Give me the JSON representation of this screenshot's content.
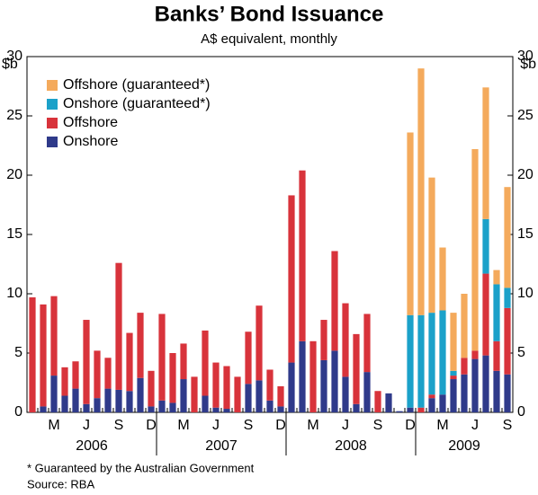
{
  "chart_data": {
    "type": "stacked_bar",
    "title": "Banks’ Bond Issuance",
    "subtitle": "A$ equivalent, monthly",
    "y_label": "$b",
    "footnote": "*    Guaranteed by the Australian Government",
    "source": "Source: RBA",
    "categories": [
      null,
      null,
      "M",
      null,
      null,
      "J",
      null,
      null,
      "S",
      null,
      null,
      "D",
      null,
      null,
      "M",
      null,
      null,
      "J",
      null,
      null,
      "S",
      null,
      null,
      "D",
      null,
      null,
      "M",
      null,
      null,
      "J",
      null,
      null,
      "S",
      null,
      null,
      "D",
      null,
      null,
      "M",
      null,
      null,
      "J",
      null,
      null,
      "S"
    ],
    "years": [
      "2006",
      "2007",
      "2008",
      "2009"
    ],
    "ylim": [
      0,
      30
    ],
    "yticks": [
      0,
      5,
      10,
      15,
      20,
      25,
      30
    ],
    "legend": "top-left",
    "series": [
      {
        "name": "Onshore",
        "color": "#2f3a8a",
        "values": [
          0,
          0.5,
          3.1,
          1.4,
          2.0,
          0.7,
          1.2,
          2.0,
          1.9,
          1.8,
          2.9,
          0.5,
          1.0,
          0.8,
          2.8,
          0,
          1.4,
          0.4,
          0.3,
          0,
          2.4,
          2.7,
          1.0,
          0.5,
          4.2,
          6.0,
          0,
          4.4,
          5.2,
          3.0,
          0.7,
          3.4,
          0,
          1.6,
          0.1,
          0.4,
          0,
          1.2,
          1.5,
          2.8,
          3.2,
          4.5,
          4.8,
          3.5,
          3.2
        ]
      },
      {
        "name": "Offshore",
        "color": "#d8333b",
        "values": [
          9.7,
          8.6,
          6.7,
          2.4,
          2.3,
          7.1,
          4.0,
          2.6,
          10.7,
          4.9,
          5.5,
          3.0,
          7.3,
          4.2,
          3.0,
          3.0,
          5.5,
          3.8,
          3.6,
          3.0,
          4.4,
          6.3,
          2.6,
          1.7,
          14.1,
          14.4,
          6.0,
          3.4,
          8.4,
          6.2,
          5.9,
          4.9,
          1.8,
          0,
          0,
          0,
          0.4,
          0.3,
          0,
          0.3,
          1.4,
          0.7,
          6.9,
          2.5,
          5.6
        ]
      },
      {
        "name": "Onshore (guaranteed*)",
        "color": "#1ba1c9",
        "values": [
          0,
          0,
          0,
          0,
          0,
          0,
          0,
          0,
          0,
          0,
          0,
          0,
          0,
          0,
          0,
          0,
          0,
          0,
          0,
          0,
          0,
          0,
          0,
          0,
          0,
          0,
          0,
          0,
          0,
          0,
          0,
          0,
          0,
          0,
          0,
          7.8,
          7.8,
          6.9,
          7.1,
          0.4,
          0,
          0,
          4.6,
          4.8,
          1.7
        ]
      },
      {
        "name": "Offshore (guaranteed*)",
        "color": "#f4aa5c",
        "values": [
          0,
          0,
          0,
          0,
          0,
          0,
          0,
          0,
          0,
          0,
          0,
          0,
          0,
          0,
          0,
          0,
          0,
          0,
          0,
          0,
          0,
          0,
          0,
          0,
          0,
          0,
          0,
          0,
          0,
          0,
          0,
          0,
          0,
          0,
          0,
          15.4,
          20.8,
          11.4,
          5.3,
          4.9,
          5.4,
          17.0,
          11.1,
          1.2,
          8.5
        ]
      }
    ]
  }
}
